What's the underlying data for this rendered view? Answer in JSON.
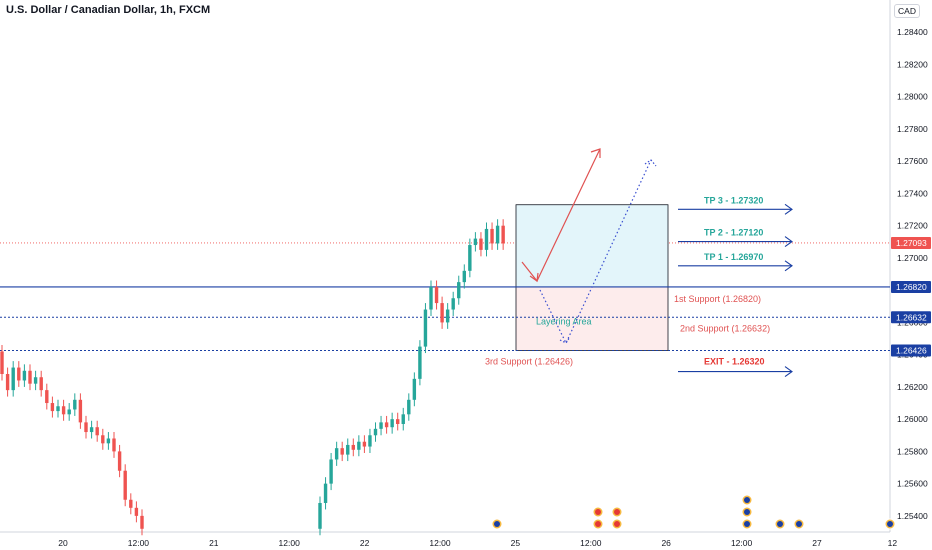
{
  "title": "U.S. Dollar / Canadian Dollar, 1h, FXCM",
  "currency": "CAD",
  "colors": {
    "up": "#26a69a",
    "down": "#ef5350",
    "support_line": "#1a3fa3",
    "tp_text": "#26a69a",
    "support_text": "#e05252",
    "exit_text": "#e53935",
    "arrow_blue": "#1a3fa3",
    "arrow_red": "#e05252",
    "box_top_fill": "#e3f5fa",
    "box_bottom_fill": "#fdecec",
    "price_line": "#ef5350"
  },
  "chart_data": {
    "type": "candlestick",
    "ylim": [
      1.253,
      1.286
    ],
    "y_ticks": [
      "1.28400",
      "1.28200",
      "1.28000",
      "1.27800",
      "1.27600",
      "1.27400",
      "1.27200",
      "1.27000",
      "1.26800",
      "1.26600",
      "1.26400",
      "1.26200",
      "1.26000",
      "1.25800",
      "1.25600",
      "1.25400"
    ],
    "x_ticks": [
      "20",
      "12:00",
      "21",
      "12:00",
      "22",
      "12:00",
      "25",
      "12:00",
      "26",
      "12:00",
      "27",
      "12"
    ],
    "current_price": "1.27093",
    "candles_oc": [
      [
        1.2642,
        1.2628
      ],
      [
        1.2628,
        1.2618
      ],
      [
        1.2618,
        1.2632
      ],
      [
        1.2632,
        1.2624
      ],
      [
        1.2624,
        1.263
      ],
      [
        1.263,
        1.2622
      ],
      [
        1.2622,
        1.2626
      ],
      [
        1.2626,
        1.2618
      ],
      [
        1.2618,
        1.261
      ],
      [
        1.261,
        1.2605
      ],
      [
        1.2605,
        1.2608
      ],
      [
        1.2608,
        1.2603
      ],
      [
        1.2603,
        1.2606
      ],
      [
        1.2606,
        1.2612
      ],
      [
        1.2612,
        1.2598
      ],
      [
        1.2598,
        1.2592
      ],
      [
        1.2592,
        1.2595
      ],
      [
        1.2595,
        1.259
      ],
      [
        1.259,
        1.2585
      ],
      [
        1.2585,
        1.2588
      ],
      [
        1.2588,
        1.258
      ],
      [
        1.258,
        1.2568
      ],
      [
        1.2568,
        1.255
      ],
      [
        1.255,
        1.2545
      ],
      [
        1.2545,
        1.254
      ],
      [
        1.254,
        1.2532
      ]
    ],
    "candles_oc_2": [
      [
        1.2532,
        1.2548
      ],
      [
        1.2548,
        1.256
      ],
      [
        1.256,
        1.2575
      ],
      [
        1.2575,
        1.2582
      ],
      [
        1.2582,
        1.2578
      ],
      [
        1.2578,
        1.2584
      ],
      [
        1.2584,
        1.2581
      ],
      [
        1.2581,
        1.2586
      ],
      [
        1.2586,
        1.2583
      ],
      [
        1.2583,
        1.259
      ],
      [
        1.259,
        1.2594
      ],
      [
        1.2594,
        1.2598
      ],
      [
        1.2598,
        1.2595
      ],
      [
        1.2595,
        1.26
      ],
      [
        1.26,
        1.2597
      ],
      [
        1.2597,
        1.2603
      ],
      [
        1.2603,
        1.2612
      ],
      [
        1.2612,
        1.2625
      ],
      [
        1.2625,
        1.2645
      ],
      [
        1.2645,
        1.2668
      ],
      [
        1.2668,
        1.2682
      ],
      [
        1.2682,
        1.2672
      ],
      [
        1.2672,
        1.266
      ],
      [
        1.266,
        1.2668
      ],
      [
        1.2668,
        1.2675
      ],
      [
        1.2675,
        1.2685
      ],
      [
        1.2685,
        1.2692
      ],
      [
        1.2692,
        1.2708
      ],
      [
        1.2708,
        1.2712
      ],
      [
        1.2712,
        1.2705
      ],
      [
        1.2705,
        1.2718
      ],
      [
        1.2718,
        1.2709
      ],
      [
        1.2709,
        1.272
      ],
      [
        1.272,
        1.2709
      ]
    ],
    "support_levels": [
      {
        "value": 1.2682,
        "label": "1.26820"
      },
      {
        "value": 1.26632,
        "label": "1.26632"
      },
      {
        "value": 1.26426,
        "label": "1.26426"
      }
    ],
    "annotations": {
      "tp3": "TP 3 - 1.27320",
      "tp2": "TP 2 - 1.27120",
      "tp1": "TP 1 - 1.26970",
      "s1": "1st Support (1.26820)",
      "s2": "2nd Support (1.26632)",
      "s3": "3rd Support (1.26426)",
      "exit": "EXIT - 1.26320",
      "layering": "Layering Area"
    },
    "events": [
      {
        "flag": "us",
        "stack": 1,
        "x_index": 0
      },
      {
        "flag": "ca",
        "stack": 2,
        "x_index": 1
      },
      {
        "flag": "ca",
        "stack": 2,
        "x_index": 2
      },
      {
        "flag": "us",
        "stack": 3,
        "x_index": 3
      },
      {
        "flag": "us",
        "stack": 1,
        "x_index": 4
      },
      {
        "flag": "us",
        "stack": 1,
        "x_index": 5
      },
      {
        "flag": "us",
        "stack": 1,
        "x_index": 6
      }
    ]
  }
}
